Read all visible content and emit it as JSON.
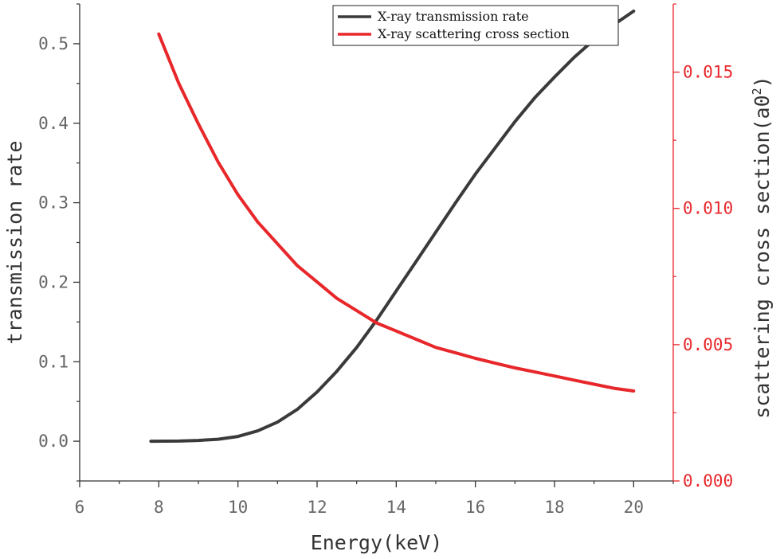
{
  "chart_data": {
    "type": "line",
    "x": {
      "label": "Energy(keV)",
      "lim": [
        6,
        21
      ],
      "ticks": [
        6,
        8,
        10,
        12,
        14,
        16,
        18,
        20
      ],
      "tick_labels": [
        "6",
        "8",
        "10",
        "12",
        "14",
        "16",
        "18",
        "20"
      ]
    },
    "y_left": {
      "label": "transmission rate",
      "lim": [
        -0.05,
        0.55
      ],
      "ticks": [
        0.0,
        0.1,
        0.2,
        0.3,
        0.4,
        0.5
      ],
      "tick_labels": [
        "0.0",
        "0.1",
        "0.2",
        "0.3",
        "0.4",
        "0.5"
      ],
      "color": "#666666"
    },
    "y_right": {
      "label_main": "scattering cross section(a0",
      "label_sup": "2",
      "label_end": ")",
      "lim": [
        0.0,
        0.0175
      ],
      "ticks": [
        0.0,
        0.005,
        0.01,
        0.015
      ],
      "tick_labels": [
        "0.000",
        "0.005",
        "0.010",
        "0.015"
      ],
      "color": "#e8272b"
    },
    "series": [
      {
        "name": "X-ray transmission rate",
        "axis": "left",
        "color": "#3a3a3a",
        "x": [
          7.8,
          8.5,
          9.0,
          9.5,
          10.0,
          10.5,
          11.0,
          11.5,
          12.0,
          12.5,
          13.0,
          13.5,
          14.0,
          14.5,
          15.0,
          15.5,
          16.0,
          16.5,
          17.0,
          17.5,
          18.0,
          18.5,
          19.0,
          19.5,
          20.0
        ],
        "y": [
          0.0,
          0.0002,
          0.001,
          0.0025,
          0.006,
          0.013,
          0.024,
          0.04,
          0.062,
          0.088,
          0.118,
          0.152,
          0.189,
          0.226,
          0.263,
          0.3,
          0.336,
          0.369,
          0.402,
          0.432,
          0.458,
          0.483,
          0.505,
          0.524,
          0.541
        ]
      },
      {
        "name": "X-ray scattering cross section",
        "axis": "right",
        "color": "#e8272b",
        "x": [
          8.0,
          8.5,
          9.0,
          9.5,
          10.0,
          10.5,
          11.0,
          11.5,
          12.0,
          12.5,
          13.0,
          13.5,
          14.0,
          14.5,
          15.0,
          15.5,
          16.0,
          16.5,
          17.0,
          17.5,
          18.0,
          18.5,
          19.0,
          19.5,
          20.0
        ],
        "y": [
          0.0164,
          0.0146,
          0.0131,
          0.0117,
          0.0105,
          0.0095,
          0.0087,
          0.0079,
          0.0073,
          0.0067,
          0.00625,
          0.0058,
          0.0055,
          0.0052,
          0.0049,
          0.0047,
          0.0045,
          0.00432,
          0.00415,
          0.004,
          0.00385,
          0.0037,
          0.00355,
          0.0034,
          0.0033
        ]
      }
    ],
    "legend": {
      "position": "top-right"
    }
  }
}
